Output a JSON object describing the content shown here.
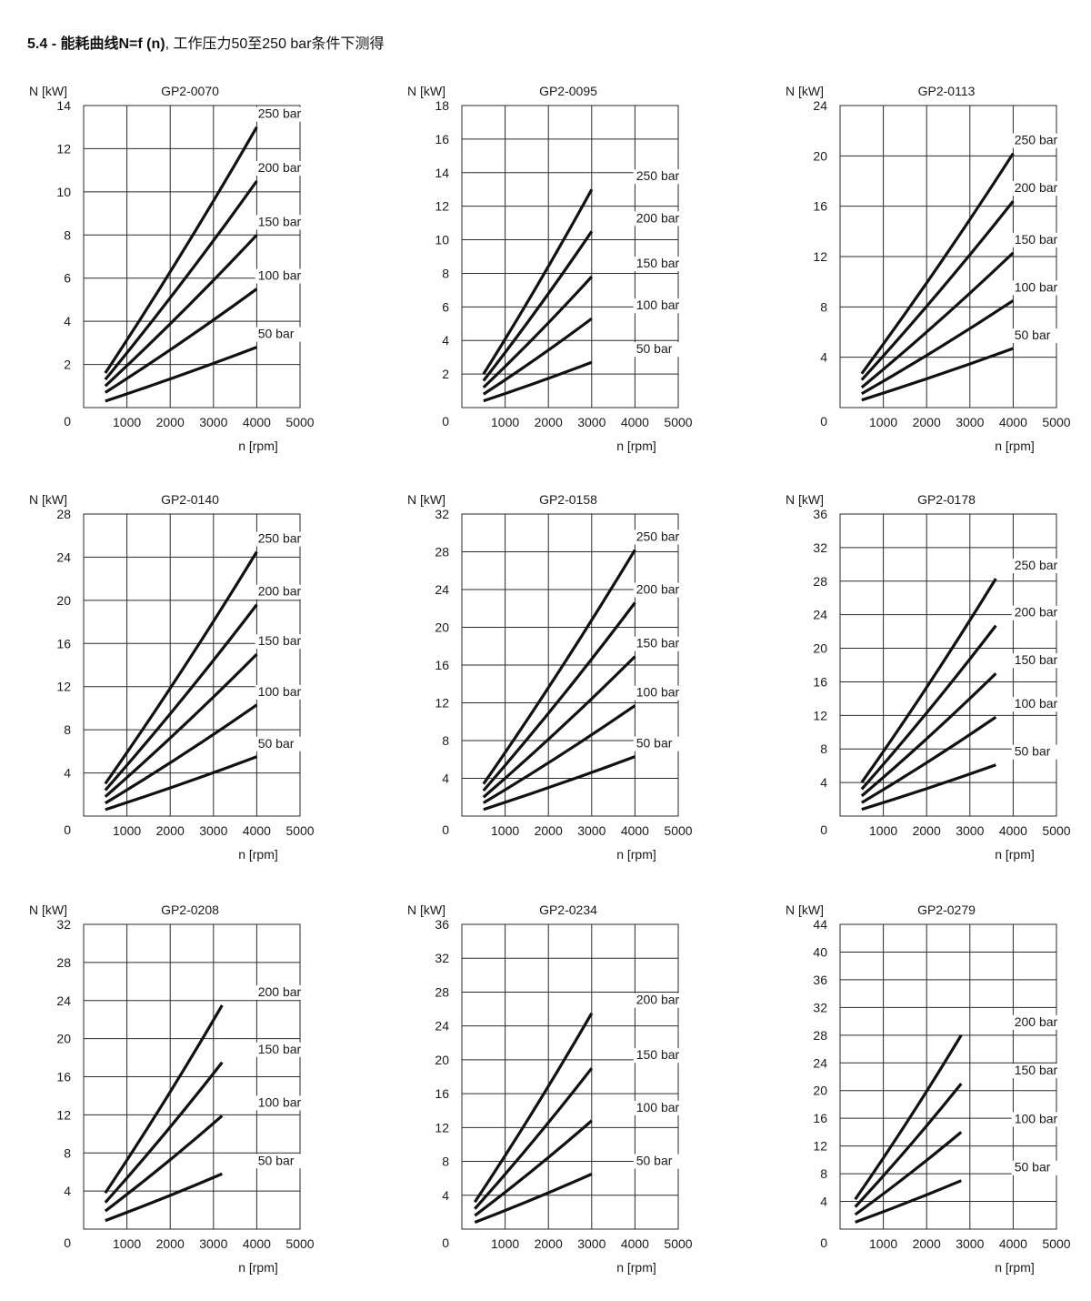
{
  "page": {
    "heading_bold": "5.4 - 能耗曲线N=f (n)",
    "heading_rest": ", 工作压力50至250 bar条件下测得"
  },
  "chart_data": [
    {
      "type": "line",
      "title": "GP2-0070",
      "ylabel": "N [kW]",
      "xlabel": "n [rpm]",
      "xlim": [
        0,
        5000
      ],
      "ylim": [
        0,
        14
      ],
      "xticks": [
        1000,
        2000,
        3000,
        4000,
        5000
      ],
      "yticks": [
        2,
        4,
        6,
        8,
        10,
        12,
        14
      ],
      "origin_label": "0",
      "grid": true,
      "series": [
        {
          "name": "250 bar",
          "x": [
            500,
            4000
          ],
          "y": [
            1.6,
            13.0
          ]
        },
        {
          "name": "200 bar",
          "x": [
            500,
            4000
          ],
          "y": [
            1.3,
            10.5
          ]
        },
        {
          "name": "150 bar",
          "x": [
            500,
            4000
          ],
          "y": [
            1.0,
            8.0
          ]
        },
        {
          "name": "100 bar",
          "x": [
            500,
            4000
          ],
          "y": [
            0.7,
            5.5
          ]
        },
        {
          "name": "50 bar",
          "x": [
            500,
            4000
          ],
          "y": [
            0.3,
            2.8
          ]
        }
      ]
    },
    {
      "type": "line",
      "title": "GP2-0095",
      "ylabel": "N [kW]",
      "xlabel": "n [rpm]",
      "xlim": [
        0,
        5000
      ],
      "ylim": [
        0,
        18
      ],
      "xticks": [
        1000,
        2000,
        3000,
        4000,
        5000
      ],
      "yticks": [
        2,
        4,
        6,
        8,
        10,
        12,
        14,
        16,
        18
      ],
      "origin_label": "0",
      "grid": true,
      "series": [
        {
          "name": "250 bar",
          "x": [
            500,
            3000
          ],
          "y": [
            2.0,
            13.0
          ]
        },
        {
          "name": "200 bar",
          "x": [
            500,
            3000
          ],
          "y": [
            1.6,
            10.5
          ]
        },
        {
          "name": "150 bar",
          "x": [
            500,
            3000
          ],
          "y": [
            1.2,
            7.8
          ]
        },
        {
          "name": "100 bar",
          "x": [
            500,
            3000
          ],
          "y": [
            0.8,
            5.3
          ]
        },
        {
          "name": "50 bar",
          "x": [
            500,
            3000
          ],
          "y": [
            0.4,
            2.7
          ]
        }
      ]
    },
    {
      "type": "line",
      "title": "GP2-0113",
      "ylabel": "N [kW]",
      "xlabel": "n [rpm]",
      "xlim": [
        0,
        5000
      ],
      "ylim": [
        0,
        24
      ],
      "xticks": [
        1000,
        2000,
        3000,
        4000,
        5000
      ],
      "yticks": [
        4,
        8,
        12,
        16,
        20,
        24
      ],
      "origin_label": "0",
      "grid": true,
      "series": [
        {
          "name": "250 bar",
          "x": [
            500,
            4000
          ],
          "y": [
            2.7,
            20.2
          ]
        },
        {
          "name": "200 bar",
          "x": [
            500,
            4000
          ],
          "y": [
            2.2,
            16.4
          ]
        },
        {
          "name": "150 bar",
          "x": [
            500,
            4000
          ],
          "y": [
            1.6,
            12.3
          ]
        },
        {
          "name": "100 bar",
          "x": [
            500,
            4000
          ],
          "y": [
            1.1,
            8.5
          ]
        },
        {
          "name": "50 bar",
          "x": [
            500,
            4000
          ],
          "y": [
            0.6,
            4.7
          ]
        }
      ]
    },
    {
      "type": "line",
      "title": "GP2-0140",
      "ylabel": "N [kW]",
      "xlabel": "n [rpm]",
      "xlim": [
        0,
        5000
      ],
      "ylim": [
        0,
        28
      ],
      "xticks": [
        1000,
        2000,
        3000,
        4000,
        5000
      ],
      "yticks": [
        4,
        8,
        12,
        16,
        20,
        24,
        28
      ],
      "origin_label": "0",
      "grid": true,
      "series": [
        {
          "name": "250 bar",
          "x": [
            500,
            4000
          ],
          "y": [
            3.0,
            24.5
          ]
        },
        {
          "name": "200 bar",
          "x": [
            500,
            4000
          ],
          "y": [
            2.4,
            19.6
          ]
        },
        {
          "name": "150 bar",
          "x": [
            500,
            4000
          ],
          "y": [
            1.8,
            15.0
          ]
        },
        {
          "name": "100 bar",
          "x": [
            500,
            4000
          ],
          "y": [
            1.2,
            10.3
          ]
        },
        {
          "name": "50 bar",
          "x": [
            500,
            4000
          ],
          "y": [
            0.6,
            5.5
          ]
        }
      ]
    },
    {
      "type": "line",
      "title": "GP2-0158",
      "ylabel": "N [kW]",
      "xlabel": "n [rpm]",
      "xlim": [
        0,
        5000
      ],
      "ylim": [
        0,
        32
      ],
      "xticks": [
        1000,
        2000,
        3000,
        4000,
        5000
      ],
      "yticks": [
        4,
        8,
        12,
        16,
        20,
        24,
        28,
        32
      ],
      "origin_label": "0",
      "grid": true,
      "series": [
        {
          "name": "250 bar",
          "x": [
            500,
            4000
          ],
          "y": [
            3.4,
            28.2
          ]
        },
        {
          "name": "200 bar",
          "x": [
            500,
            4000
          ],
          "y": [
            2.7,
            22.6
          ]
        },
        {
          "name": "150 bar",
          "x": [
            500,
            4000
          ],
          "y": [
            2.0,
            16.9
          ]
        },
        {
          "name": "100 bar",
          "x": [
            500,
            4000
          ],
          "y": [
            1.4,
            11.7
          ]
        },
        {
          "name": "50 bar",
          "x": [
            500,
            4000
          ],
          "y": [
            0.7,
            6.3
          ]
        }
      ]
    },
    {
      "type": "line",
      "title": "GP2-0178",
      "ylabel": "N [kW]",
      "xlabel": "n [rpm]",
      "xlim": [
        0,
        5000
      ],
      "ylim": [
        0,
        36
      ],
      "xticks": [
        1000,
        2000,
        3000,
        4000,
        5000
      ],
      "yticks": [
        4,
        8,
        12,
        16,
        20,
        24,
        28,
        32,
        36
      ],
      "origin_label": "0",
      "grid": true,
      "series": [
        {
          "name": "250 bar",
          "x": [
            500,
            3600
          ],
          "y": [
            4.0,
            28.3
          ]
        },
        {
          "name": "200 bar",
          "x": [
            500,
            3600
          ],
          "y": [
            3.2,
            22.7
          ]
        },
        {
          "name": "150 bar",
          "x": [
            500,
            3600
          ],
          "y": [
            2.4,
            17.0
          ]
        },
        {
          "name": "100 bar",
          "x": [
            500,
            3600
          ],
          "y": [
            1.6,
            11.8
          ]
        },
        {
          "name": "50 bar",
          "x": [
            500,
            3600
          ],
          "y": [
            0.8,
            6.1
          ]
        }
      ]
    },
    {
      "type": "line",
      "title": "GP2-0208",
      "ylabel": "N [kW]",
      "xlabel": "n [rpm]",
      "xlim": [
        0,
        5000
      ],
      "ylim": [
        0,
        32
      ],
      "xticks": [
        1000,
        2000,
        3000,
        4000,
        5000
      ],
      "yticks": [
        4,
        8,
        12,
        16,
        20,
        24,
        28,
        32
      ],
      "origin_label": "0",
      "grid": true,
      "series": [
        {
          "name": "200 bar",
          "x": [
            500,
            3200
          ],
          "y": [
            3.8,
            23.5
          ]
        },
        {
          "name": "150 bar",
          "x": [
            500,
            3200
          ],
          "y": [
            2.8,
            17.5
          ]
        },
        {
          "name": "100 bar",
          "x": [
            500,
            3200
          ],
          "y": [
            1.9,
            11.9
          ]
        },
        {
          "name": "50 bar",
          "x": [
            500,
            3200
          ],
          "y": [
            0.9,
            5.8
          ]
        }
      ]
    },
    {
      "type": "line",
      "title": "GP2-0234",
      "ylabel": "N [kW]",
      "xlabel": "n [rpm]",
      "xlim": [
        0,
        5000
      ],
      "ylim": [
        0,
        36
      ],
      "xticks": [
        1000,
        2000,
        3000,
        4000,
        5000
      ],
      "yticks": [
        4,
        8,
        12,
        16,
        20,
        24,
        28,
        32,
        36
      ],
      "origin_label": "0",
      "grid": true,
      "series": [
        {
          "name": "200 bar",
          "x": [
            300,
            3000
          ],
          "y": [
            3.2,
            25.5
          ]
        },
        {
          "name": "150 bar",
          "x": [
            300,
            3000
          ],
          "y": [
            2.4,
            19.0
          ]
        },
        {
          "name": "100 bar",
          "x": [
            300,
            3000
          ],
          "y": [
            1.6,
            12.8
          ]
        },
        {
          "name": "50 bar",
          "x": [
            300,
            3000
          ],
          "y": [
            0.8,
            6.5
          ]
        }
      ]
    },
    {
      "type": "line",
      "title": "GP2-0279",
      "ylabel": "N [kW]",
      "xlabel": "n [rpm]",
      "xlim": [
        0,
        5000
      ],
      "ylim": [
        0,
        44
      ],
      "xticks": [
        1000,
        2000,
        3000,
        4000,
        5000
      ],
      "yticks": [
        4,
        8,
        12,
        16,
        20,
        24,
        28,
        32,
        36,
        40,
        44
      ],
      "origin_label": "0",
      "grid": true,
      "series": [
        {
          "name": "200 bar",
          "x": [
            350,
            2800
          ],
          "y": [
            4.3,
            28.0
          ]
        },
        {
          "name": "150 bar",
          "x": [
            350,
            2800
          ],
          "y": [
            3.2,
            21.0
          ]
        },
        {
          "name": "100 bar",
          "x": [
            350,
            2800
          ],
          "y": [
            2.1,
            14.0
          ]
        },
        {
          "name": "50 bar",
          "x": [
            350,
            2800
          ],
          "y": [
            1.0,
            7.0
          ]
        }
      ]
    }
  ]
}
